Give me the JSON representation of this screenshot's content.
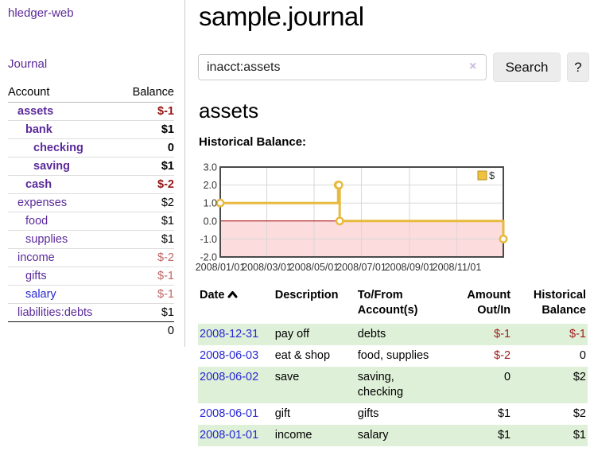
{
  "palette": {
    "purple_link": "#5b2a9a",
    "blue_link": "#2727d4",
    "negative_strong": "#941414",
    "negative_muted": "#c06565",
    "negative_table": "#9e1c1c",
    "row_stripe_green": "#dff0d8",
    "chart_line_gold": "#e7ba3f",
    "chart_negative_fill": "#fcdcdc",
    "chart_zero_line": "#a00000"
  },
  "sidebar": {
    "app_title": "hledger-web",
    "journal_link": "Journal",
    "account_header": "Account",
    "balance_header": "Balance",
    "accounts": [
      {
        "name": "assets",
        "depth": 1,
        "bold": true,
        "balance": "$-1",
        "balance_class": "neg-strong"
      },
      {
        "name": "bank",
        "depth": 2,
        "bold": true,
        "balance": "$1",
        "balance_class": "pos-strong"
      },
      {
        "name": "checking",
        "depth": 3,
        "bold": true,
        "balance": "0",
        "balance_class": "pos-strong"
      },
      {
        "name": "saving",
        "depth": 3,
        "bold": true,
        "balance": "$1",
        "balance_class": "pos-strong"
      },
      {
        "name": "cash",
        "depth": 2,
        "bold": true,
        "balance": "$-2",
        "balance_class": "neg-strong"
      },
      {
        "name": "expenses",
        "depth": 1,
        "bold": false,
        "balance": "$2",
        "balance_class": "pos"
      },
      {
        "name": "food",
        "depth": 2,
        "bold": false,
        "balance": "$1",
        "balance_class": "pos"
      },
      {
        "name": "supplies",
        "depth": 2,
        "bold": false,
        "balance": "$1",
        "balance_class": "pos"
      },
      {
        "name": "income",
        "depth": 1,
        "bold": false,
        "balance": "$-2",
        "balance_class": "neg-muted"
      },
      {
        "name": "gifts",
        "depth": 2,
        "bold": false,
        "balance": "$-1",
        "balance_class": "neg-muted"
      },
      {
        "name": "salary",
        "depth": 2,
        "bold": false,
        "link_style": "blue",
        "balance": "$-1",
        "balance_class": "neg-muted"
      },
      {
        "name": "liabilities:debts",
        "depth": 1,
        "bold": false,
        "balance": "$1",
        "balance_class": "pos"
      }
    ],
    "total": "0"
  },
  "header": {
    "title": "sample.journal"
  },
  "search": {
    "value": "inacct:assets",
    "clear_icon": "×",
    "button_label": "Search",
    "help_label": "?"
  },
  "account_page": {
    "heading": "assets",
    "chart_label": "Historical Balance:"
  },
  "chart_data": {
    "type": "line",
    "step": true,
    "title": "Historical Balance:",
    "legend": {
      "label": "$",
      "position": "top-right"
    },
    "series": [
      {
        "name": "$",
        "color": "#e7ba3f",
        "points": [
          [
            "2008-01-01",
            1.0
          ],
          [
            "2008-06-01",
            2.0
          ],
          [
            "2008-06-02",
            2.0
          ],
          [
            "2008-06-03",
            0.0
          ],
          [
            "2008-12-31",
            -1.0
          ]
        ]
      }
    ],
    "ylim": [
      -2.0,
      3.0
    ],
    "yticks": [
      3.0,
      2.0,
      1.0,
      0.0,
      -1.0,
      -2.0
    ],
    "xticks": [
      {
        "label": "2008/01/01",
        "date": "2008-01-01"
      },
      {
        "label": "2008/03/01",
        "date": "2008-03-01"
      },
      {
        "label": "2008/05/01",
        "date": "2008-05-01"
      },
      {
        "label": "2008/07/01",
        "date": "2008-07-01"
      },
      {
        "label": "2008/09/01",
        "date": "2008-09-01"
      },
      {
        "label": "2008/11/01",
        "date": "2008-11-01"
      }
    ],
    "xrange": [
      "2008-01-01",
      "2008-12-31"
    ],
    "grid": true,
    "negative_region_fill": "#fcdcdc",
    "zero_line_color": "#a00000"
  },
  "register": {
    "headers": {
      "date": "Date",
      "description": "Description",
      "tofrom": "To/From Account(s)",
      "amount": "Amount Out/In",
      "balance": "Historical Balance"
    },
    "rows": [
      {
        "date": "2008-12-31",
        "description": "pay off",
        "accounts": "debts",
        "amount": "$-1",
        "amount_neg": true,
        "balance": "$-1",
        "balance_neg": true,
        "stripe": true
      },
      {
        "date": "2008-06-03",
        "description": "eat & shop",
        "accounts": "food, supplies",
        "amount": "$-2",
        "amount_neg": true,
        "balance": "0",
        "balance_neg": false,
        "stripe": false
      },
      {
        "date": "2008-06-02",
        "description": "save",
        "accounts": "saving, checking",
        "amount": "0",
        "amount_neg": false,
        "balance": "$2",
        "balance_neg": false,
        "stripe": true
      },
      {
        "date": "2008-06-01",
        "description": "gift",
        "accounts": "gifts",
        "amount": "$1",
        "amount_neg": false,
        "balance": "$2",
        "balance_neg": false,
        "stripe": false
      },
      {
        "date": "2008-01-01",
        "description": "income",
        "accounts": "salary",
        "amount": "$1",
        "amount_neg": false,
        "balance": "$1",
        "balance_neg": false,
        "stripe": true
      }
    ]
  }
}
